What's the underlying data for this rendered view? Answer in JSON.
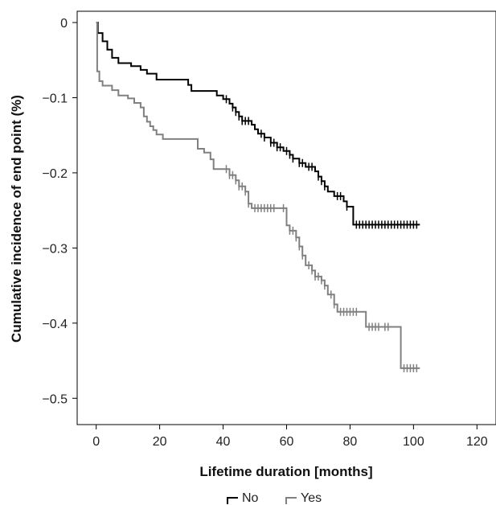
{
  "chart_data": {
    "type": "line",
    "title": "",
    "xlabel": "Lifetime duration [months]",
    "ylabel": "Cumulative incidence of end point (%)",
    "xlim": [
      -6,
      126
    ],
    "ylim": [
      -0.535,
      0.015
    ],
    "xticks": [
      0,
      20,
      40,
      60,
      80,
      100,
      120
    ],
    "yticks": [
      0,
      -0.1,
      -0.2,
      -0.3,
      -0.4,
      -0.5
    ],
    "xtick_labels": [
      "0",
      "20",
      "40",
      "60",
      "80",
      "100",
      "120"
    ],
    "ytick_labels": [
      "0",
      "−0.1",
      "−0.2",
      "−0.3",
      "−0.4",
      "−0.5"
    ],
    "grid": false,
    "legend_position": "bottom-center",
    "series": [
      {
        "name": "No",
        "color": "#000000",
        "step_points": [
          [
            0,
            0
          ],
          [
            0.5,
            -0.014
          ],
          [
            2,
            -0.025
          ],
          [
            3.5,
            -0.036
          ],
          [
            5,
            -0.047
          ],
          [
            7,
            -0.054
          ],
          [
            11,
            -0.058
          ],
          [
            14,
            -0.063
          ],
          [
            16,
            -0.068
          ],
          [
            19,
            -0.076
          ],
          [
            29,
            -0.083
          ],
          [
            30,
            -0.091
          ],
          [
            38,
            -0.097
          ],
          [
            40,
            -0.102
          ],
          [
            42,
            -0.108
          ],
          [
            43,
            -0.113
          ],
          [
            44,
            -0.119
          ],
          [
            45,
            -0.125
          ],
          [
            46,
            -0.131
          ],
          [
            49,
            -0.136
          ],
          [
            50,
            -0.142
          ],
          [
            51,
            -0.148
          ],
          [
            53,
            -0.153
          ],
          [
            55,
            -0.16
          ],
          [
            57,
            -0.166
          ],
          [
            59,
            -0.171
          ],
          [
            61,
            -0.176
          ],
          [
            62,
            -0.181
          ],
          [
            64,
            -0.187
          ],
          [
            66,
            -0.192
          ],
          [
            69,
            -0.198
          ],
          [
            70,
            -0.205
          ],
          [
            71,
            -0.211
          ],
          [
            72,
            -0.218
          ],
          [
            73,
            -0.225
          ],
          [
            75,
            -0.231
          ],
          [
            78,
            -0.238
          ],
          [
            79,
            -0.245
          ],
          [
            81,
            -0.269
          ],
          [
            102,
            -0.269
          ]
        ],
        "censored_x": [
          41,
          43,
          44,
          45,
          46,
          47,
          48,
          52,
          53,
          55,
          56,
          57,
          58,
          60,
          61,
          62,
          64,
          65,
          67,
          68,
          70,
          71,
          72,
          76,
          77,
          79,
          82,
          83,
          84,
          85,
          86,
          87,
          88,
          89,
          90,
          91,
          92,
          93,
          94,
          95,
          96,
          97,
          98,
          99,
          100,
          101
        ]
      },
      {
        "name": "Yes",
        "color": "#808080",
        "step_points": [
          [
            0,
            0
          ],
          [
            0.3,
            -0.065
          ],
          [
            1,
            -0.078
          ],
          [
            2,
            -0.084
          ],
          [
            5,
            -0.09
          ],
          [
            7,
            -0.097
          ],
          [
            10,
            -0.101
          ],
          [
            12,
            -0.107
          ],
          [
            14,
            -0.113
          ],
          [
            15,
            -0.125
          ],
          [
            16,
            -0.132
          ],
          [
            17,
            -0.138
          ],
          [
            18,
            -0.143
          ],
          [
            19,
            -0.149
          ],
          [
            21,
            -0.155
          ],
          [
            32,
            -0.168
          ],
          [
            34,
            -0.173
          ],
          [
            36,
            -0.182
          ],
          [
            37,
            -0.195
          ],
          [
            42,
            -0.203
          ],
          [
            44,
            -0.21
          ],
          [
            45,
            -0.218
          ],
          [
            47,
            -0.225
          ],
          [
            48,
            -0.241
          ],
          [
            49,
            -0.247
          ],
          [
            60,
            -0.27
          ],
          [
            61,
            -0.277
          ],
          [
            63,
            -0.286
          ],
          [
            64,
            -0.298
          ],
          [
            65,
            -0.31
          ],
          [
            66,
            -0.323
          ],
          [
            68,
            -0.33
          ],
          [
            69,
            -0.338
          ],
          [
            71,
            -0.343
          ],
          [
            72,
            -0.35
          ],
          [
            73,
            -0.362
          ],
          [
            75,
            -0.375
          ],
          [
            76,
            -0.385
          ],
          [
            85,
            -0.405
          ],
          [
            96,
            -0.46
          ],
          [
            102,
            -0.46
          ]
        ],
        "censored_x": [
          41,
          42,
          43,
          44,
          45,
          46,
          47,
          48,
          50,
          51,
          52,
          53,
          54,
          55,
          56,
          59,
          61,
          62,
          63,
          64,
          65,
          67,
          68,
          69,
          70,
          71,
          72,
          74,
          75,
          77,
          78,
          79,
          80,
          81,
          82,
          86,
          87,
          88,
          89,
          91,
          92,
          97,
          98,
          99,
          100,
          101
        ]
      }
    ]
  }
}
